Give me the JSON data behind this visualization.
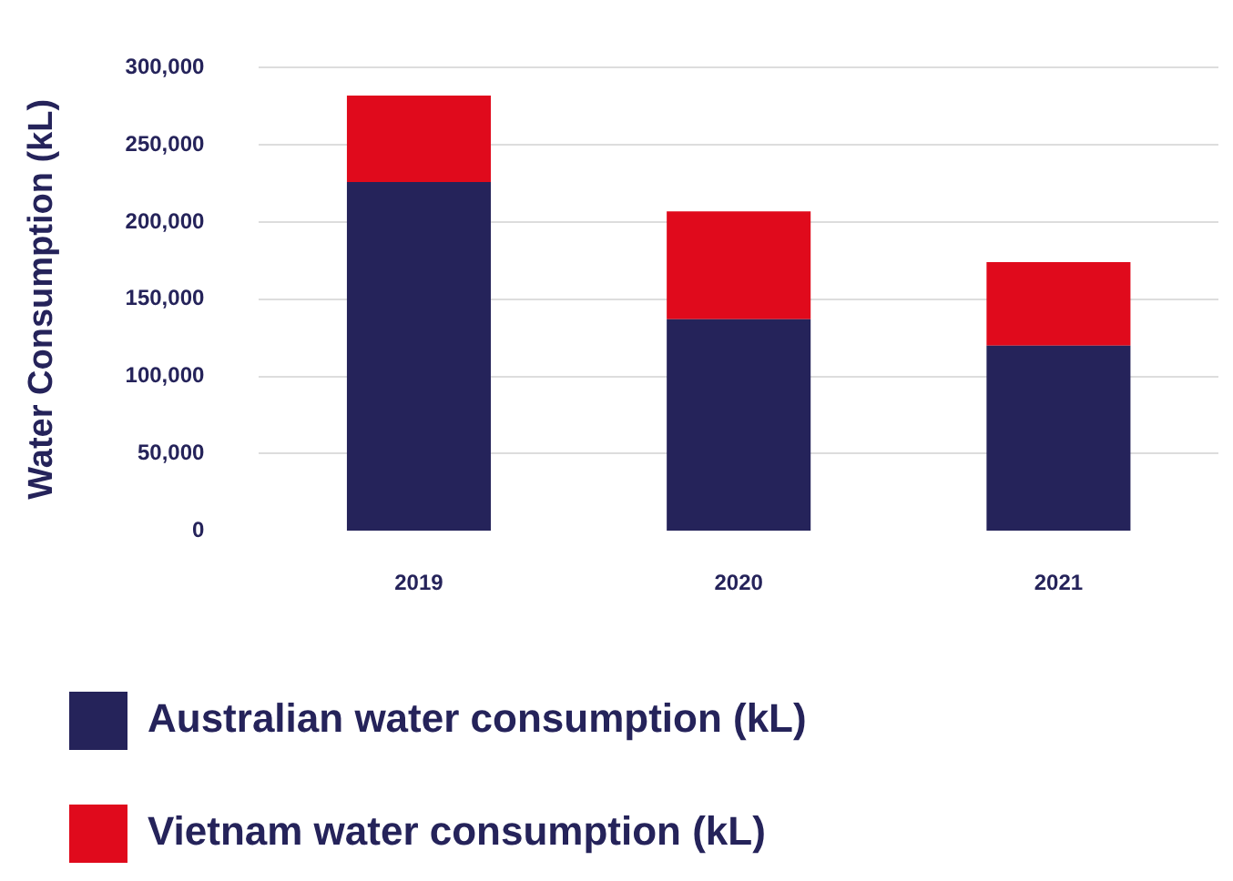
{
  "chart_data": {
    "type": "bar",
    "stacked": true,
    "ylabel": "Water Consumption (kL)",
    "categories": [
      "2019",
      "2020",
      "2021"
    ],
    "series": [
      {
        "name": "Australian water consumption (kL)",
        "color": "#25235a",
        "values": [
          226000,
          137000,
          120000
        ]
      },
      {
        "name": "Vietnam water consumption (kL)",
        "color": "#e00a1c",
        "values": [
          56000,
          70000,
          54000
        ]
      }
    ],
    "ylim": [
      0,
      300000
    ],
    "yticks": [
      0,
      {
        "value": 50000,
        "label": "50,000"
      },
      {
        "value": 100000,
        "label": "100,000"
      },
      {
        "value": 150000,
        "label": "150,000"
      },
      {
        "value": 200000,
        "label": "200,000"
      },
      {
        "value": 250000,
        "label": "250,000"
      },
      {
        "value": 300000,
        "label": "300,000"
      }
    ],
    "grid": "y",
    "legend": "bottom"
  }
}
